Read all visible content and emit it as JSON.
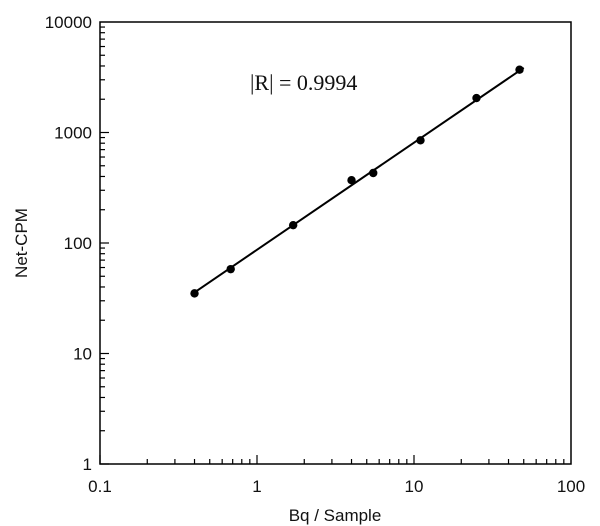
{
  "chart_data": {
    "type": "scatter",
    "title": "",
    "xlabel": "Bq / Sample",
    "ylabel": "Net-CPM",
    "xscale": "log",
    "yscale": "log",
    "xlim": [
      0.1,
      100
    ],
    "ylim": [
      1,
      10000
    ],
    "x_tick_labels": [
      "0.1",
      "1",
      "10",
      "100"
    ],
    "y_tick_labels": [
      "1",
      "10",
      "100",
      "1000",
      "10000"
    ],
    "grid": false,
    "legend": "none",
    "annotation": "|R| = 0.9994",
    "series": [
      {
        "x": [
          0.4,
          0.68,
          1.7,
          4.0,
          5.5,
          11.0,
          25.0,
          47.0
        ],
        "y": [
          35,
          58,
          145,
          370,
          430,
          850,
          2050,
          3700
        ],
        "marker": "circle",
        "color": "#000000"
      }
    ],
    "fit_line": {
      "type": "power",
      "x": [
        0.38,
        50
      ],
      "y": [
        34,
        3850
      ],
      "color": "#000000"
    }
  }
}
